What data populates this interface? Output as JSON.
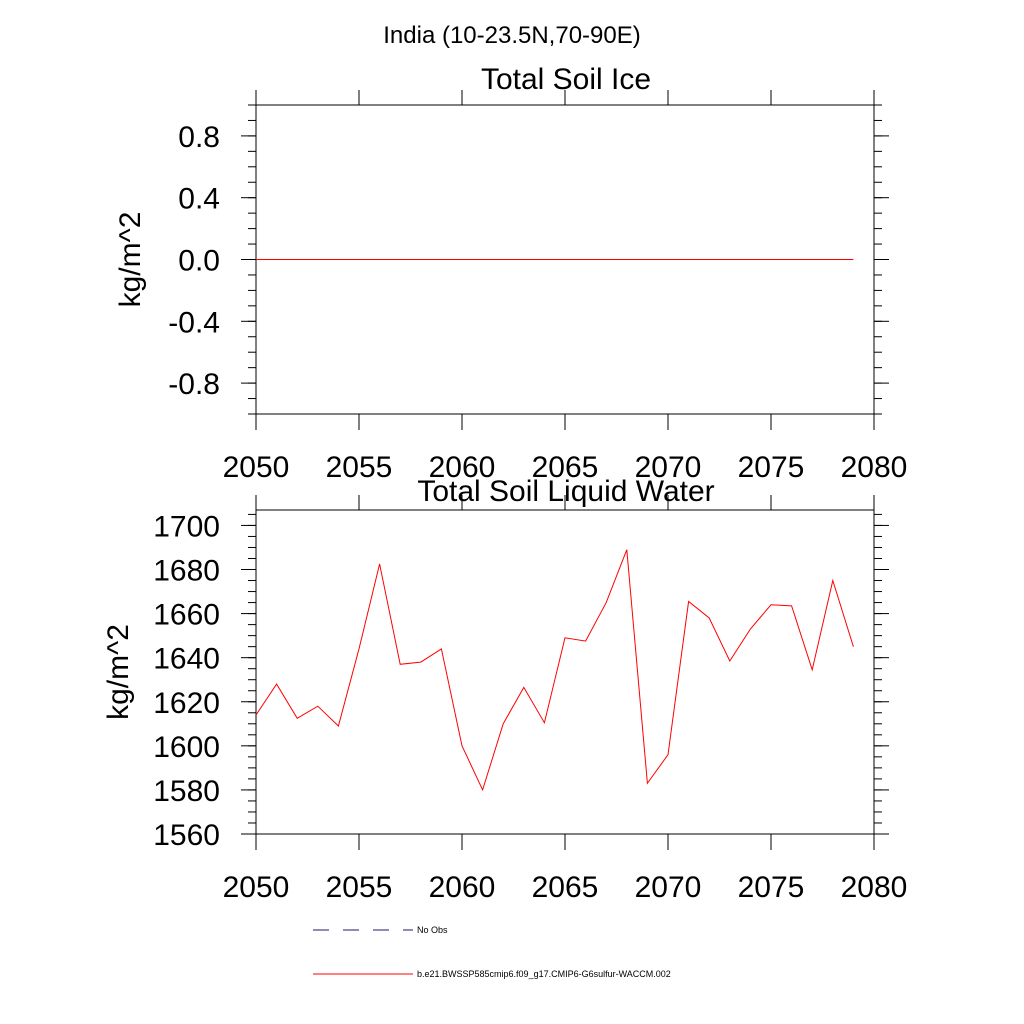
{
  "page_title": "India (10-23.5N,70-90E)",
  "colors": {
    "model_line": "#ff0000",
    "obs_line": "#1a1a6e",
    "axes": "#000000"
  },
  "legend": {
    "obs_label": "No Obs",
    "model_label": "b.e21.BWSSP585cmip6.f09_g17.CMIP6-G6sulfur-WACCM.002"
  },
  "chart_data": [
    {
      "type": "line",
      "title": "Total Soil Ice",
      "xlabel": "",
      "ylabel": "kg/m^2",
      "xlim": [
        2050,
        2080
      ],
      "ylim": [
        -1.0,
        1.0
      ],
      "xticks": [
        2050,
        2055,
        2060,
        2065,
        2070,
        2075,
        2080
      ],
      "xtick_labels": [
        "2050",
        "2055",
        "2060",
        "2065",
        "2070",
        "2075",
        "2080"
      ],
      "yticks": [
        0.8,
        0.4,
        0.0,
        -0.4,
        -0.8
      ],
      "ytick_labels": [
        "0.8",
        "0.4",
        "0.0",
        "-0.4",
        "-0.8"
      ],
      "grid": false,
      "series": [
        {
          "x": [
            2050,
            2051,
            2052,
            2053,
            2054,
            2055,
            2056,
            2057,
            2058,
            2059,
            2060,
            2061,
            2062,
            2063,
            2064,
            2065,
            2066,
            2067,
            2068,
            2069,
            2070,
            2071,
            2072,
            2073,
            2074,
            2075,
            2076,
            2077,
            2078,
            2079
          ],
          "values": [
            0,
            0,
            0,
            0,
            0,
            0,
            0,
            0,
            0,
            0,
            0,
            0,
            0,
            0,
            0,
            0,
            0,
            0,
            0,
            0,
            0,
            0,
            0,
            0,
            0,
            0,
            0,
            0,
            0,
            0
          ]
        }
      ]
    },
    {
      "type": "line",
      "title": "Total Soil Liquid Water",
      "xlabel": "",
      "ylabel": "kg/m^2",
      "xlim": [
        2050,
        2080
      ],
      "ylim": [
        1560,
        1707
      ],
      "xticks": [
        2050,
        2055,
        2060,
        2065,
        2070,
        2075,
        2080
      ],
      "xtick_labels": [
        "2050",
        "2055",
        "2060",
        "2065",
        "2070",
        "2075",
        "2080"
      ],
      "yticks": [
        1700,
        1680,
        1660,
        1640,
        1620,
        1600,
        1580,
        1560
      ],
      "ytick_labels": [
        "1700",
        "1680",
        "1660",
        "1640",
        "1620",
        "1600",
        "1580",
        "1560"
      ],
      "grid": false,
      "series": [
        {
          "x": [
            2050,
            2051,
            2052,
            2053,
            2054,
            2055,
            2056,
            2057,
            2058,
            2059,
            2060,
            2061,
            2062,
            2063,
            2064,
            2065,
            2066,
            2067,
            2068,
            2069,
            2070,
            2071,
            2072,
            2073,
            2074,
            2075,
            2076,
            2077,
            2078,
            2079
          ],
          "values": [
            1614,
            1628,
            1612.5,
            1618,
            1609,
            1644,
            1682.5,
            1637,
            1638,
            1644,
            1600,
            1580,
            1610,
            1626.5,
            1610.5,
            1649,
            1647.5,
            1665,
            1689,
            1583,
            1596,
            1665.5,
            1658,
            1638.5,
            1653,
            1664,
            1663.5,
            1634.5,
            1675,
            1645
          ]
        }
      ]
    }
  ]
}
